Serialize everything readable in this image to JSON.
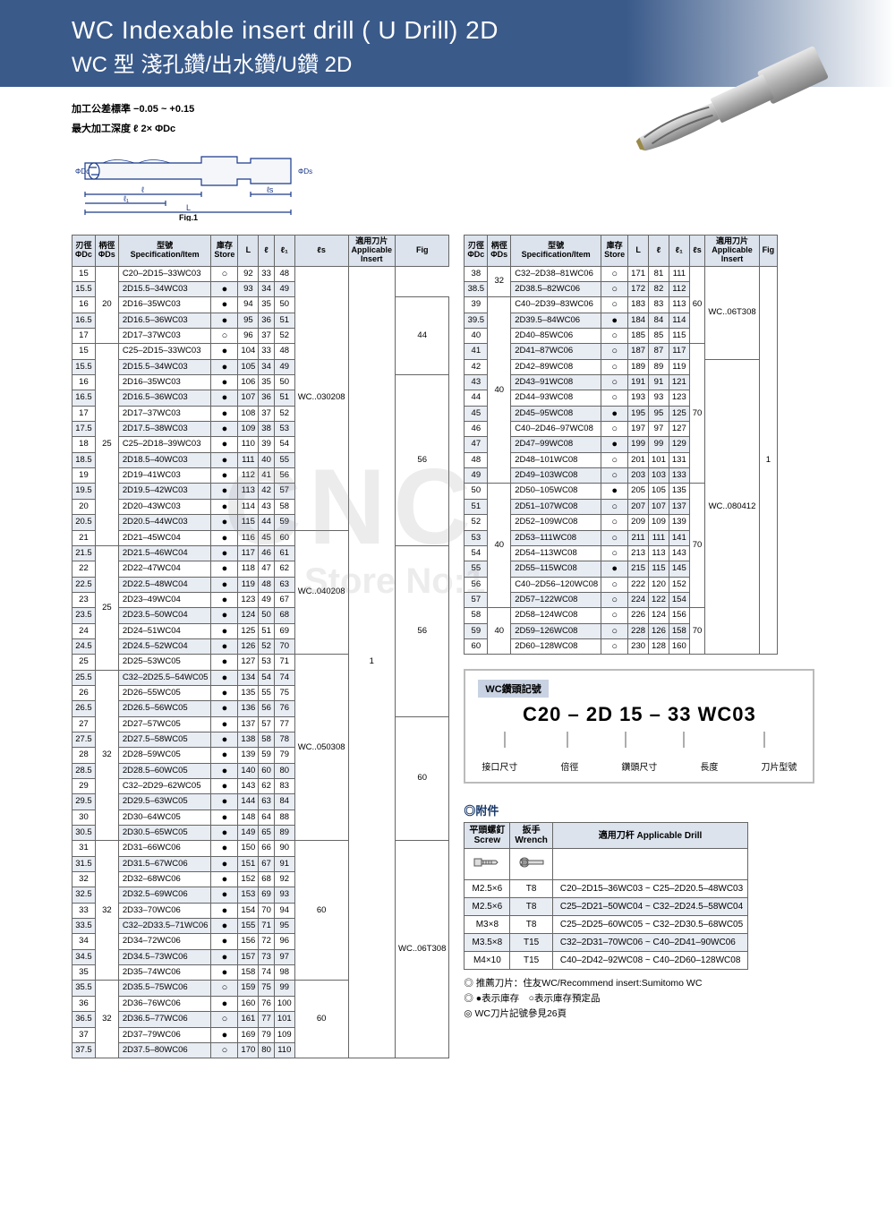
{
  "header": {
    "title_en": "WC Indexable insert drill   ( U Drill)   2D",
    "title_zh": "WC 型 淺孔鑽/出水鑽/U鑽  2D"
  },
  "tolerance": {
    "line1": "加工公差標準 −0.05 ~ +0.15",
    "line2": "最大加工深度 ℓ 2× ΦDc"
  },
  "diagram_label": "Fig.1",
  "table_headers": {
    "dc": "刃徑\nΦDc",
    "ds": "柄徑\nΦDs",
    "spec": "型號\nSpecification/Item",
    "store": "庫存\nStore",
    "L": "L",
    "l": "ℓ",
    "l1": "ℓ₁",
    "ls": "ℓs",
    "insert": "適用刀片\nApplicable\nInsert",
    "fig": "Fig"
  },
  "table1": [
    [
      "15",
      "20",
      "C20–2D15–33WC03",
      "",
      "o",
      "92",
      "33",
      "48",
      "",
      "WC..030208",
      "1"
    ],
    [
      "15.5",
      "",
      "2D15.5–34WC03",
      "a",
      "f",
      "93",
      "34",
      "49",
      "",
      "",
      ""
    ],
    [
      "16",
      "",
      "2D16–35WC03",
      "",
      "f",
      "94",
      "35",
      "50",
      "44",
      "",
      ""
    ],
    [
      "16.5",
      "",
      "2D16.5–36WC03",
      "a",
      "f",
      "95",
      "36",
      "51",
      "",
      "",
      ""
    ],
    [
      "17",
      "",
      "2D17–37WC03",
      "",
      "o",
      "96",
      "37",
      "52",
      "",
      "",
      ""
    ],
    [
      "15",
      "25",
      "C25–2D15–33WC03",
      "",
      "f",
      "104",
      "33",
      "48",
      "",
      "",
      ""
    ],
    [
      "15.5",
      "",
      "2D15.5–34WC03",
      "a",
      "f",
      "105",
      "34",
      "49",
      "",
      "",
      ""
    ],
    [
      "16",
      "",
      "2D16–35WC03",
      "",
      "f",
      "106",
      "35",
      "50",
      "56",
      "",
      ""
    ],
    [
      "16.5",
      "",
      "2D16.5–36WC03",
      "a",
      "f",
      "107",
      "36",
      "51",
      "",
      "",
      ""
    ],
    [
      "17",
      "",
      "2D17–37WC03",
      "",
      "f",
      "108",
      "37",
      "52",
      "",
      "",
      ""
    ],
    [
      "17.5",
      "",
      "2D17.5–38WC03",
      "a",
      "f",
      "109",
      "38",
      "53",
      "",
      "",
      ""
    ],
    [
      "18",
      "",
      "C25–2D18–39WC03",
      "",
      "f",
      "110",
      "39",
      "54",
      "",
      "",
      ""
    ],
    [
      "18.5",
      "",
      "2D18.5–40WC03",
      "a",
      "f",
      "111",
      "40",
      "55",
      "",
      "",
      ""
    ],
    [
      "19",
      "",
      "2D19–41WC03",
      "",
      "f",
      "112",
      "41",
      "56",
      "",
      "",
      ""
    ],
    [
      "19.5",
      "",
      "2D19.5–42WC03",
      "a",
      "f",
      "113",
      "42",
      "57",
      "",
      "",
      ""
    ],
    [
      "20",
      "",
      "2D20–43WC03",
      "",
      "f",
      "114",
      "43",
      "58",
      "",
      "",
      ""
    ],
    [
      "20.5",
      "",
      "2D20.5–44WC03",
      "a",
      "f",
      "115",
      "44",
      "59",
      "",
      "",
      ""
    ],
    [
      "21",
      "",
      "2D21–45WC04",
      "",
      "f",
      "116",
      "45",
      "60",
      "",
      "WC..040208",
      ""
    ],
    [
      "21.5",
      "25",
      "2D21.5–46WC04",
      "a",
      "f",
      "117",
      "46",
      "61",
      "56",
      "",
      ""
    ],
    [
      "22",
      "",
      "2D22–47WC04",
      "",
      "f",
      "118",
      "47",
      "62",
      "",
      "",
      ""
    ],
    [
      "22.5",
      "",
      "2D22.5–48WC04",
      "a",
      "f",
      "119",
      "48",
      "63",
      "",
      "",
      ""
    ],
    [
      "23",
      "",
      "2D23–49WC04",
      "",
      "f",
      "123",
      "49",
      "67",
      "",
      "",
      ""
    ],
    [
      "23.5",
      "",
      "2D23.5–50WC04",
      "a",
      "f",
      "124",
      "50",
      "68",
      "",
      "",
      ""
    ],
    [
      "24",
      "",
      "2D24–51WC04",
      "",
      "f",
      "125",
      "51",
      "69",
      "",
      "",
      ""
    ],
    [
      "24.5",
      "",
      "2D24.5–52WC04",
      "a",
      "f",
      "126",
      "52",
      "70",
      "",
      "",
      ""
    ],
    [
      "25",
      "",
      "2D25–53WC05",
      "",
      "f",
      "127",
      "53",
      "71",
      "",
      "WC..050308",
      ""
    ],
    [
      "25.5",
      "32",
      "C32–2D25.5–54WC05",
      "a",
      "f",
      "134",
      "54",
      "74",
      "",
      "",
      ""
    ],
    [
      "26",
      "",
      "2D26–55WC05",
      "",
      "f",
      "135",
      "55",
      "75",
      "",
      "",
      ""
    ],
    [
      "26.5",
      "",
      "2D26.5–56WC05",
      "a",
      "f",
      "136",
      "56",
      "76",
      "",
      "",
      ""
    ],
    [
      "27",
      "",
      "2D27–57WC05",
      "",
      "f",
      "137",
      "57",
      "77",
      "60",
      "",
      ""
    ],
    [
      "27.5",
      "",
      "2D27.5–58WC05",
      "a",
      "f",
      "138",
      "58",
      "78",
      "",
      "",
      ""
    ],
    [
      "28",
      "",
      "2D28–59WC05",
      "",
      "f",
      "139",
      "59",
      "79",
      "",
      "",
      ""
    ],
    [
      "28.5",
      "",
      "2D28.5–60WC05",
      "a",
      "f",
      "140",
      "60",
      "80",
      "",
      "",
      ""
    ],
    [
      "29",
      "",
      "C32–2D29–62WC05",
      "",
      "f",
      "143",
      "62",
      "83",
      "",
      "",
      ""
    ],
    [
      "29.5",
      "",
      "2D29.5–63WC05",
      "a",
      "f",
      "144",
      "63",
      "84",
      "",
      "",
      ""
    ],
    [
      "30",
      "",
      "2D30–64WC05",
      "",
      "f",
      "148",
      "64",
      "88",
      "",
      "",
      ""
    ],
    [
      "30.5",
      "",
      "2D30.5–65WC05",
      "a",
      "f",
      "149",
      "65",
      "89",
      "",
      "",
      ""
    ],
    [
      "31",
      "32",
      "2D31–66WC06",
      "",
      "f",
      "150",
      "66",
      "90",
      "60",
      "WC..06T308",
      ""
    ],
    [
      "31.5",
      "",
      "2D31.5–67WC06",
      "a",
      "f",
      "151",
      "67",
      "91",
      "",
      "",
      ""
    ],
    [
      "32",
      "",
      "2D32–68WC06",
      "",
      "f",
      "152",
      "68",
      "92",
      "",
      "",
      ""
    ],
    [
      "32.5",
      "",
      "2D32.5–69WC06",
      "a",
      "f",
      "153",
      "69",
      "93",
      "",
      "",
      ""
    ],
    [
      "33",
      "",
      "2D33–70WC06",
      "",
      "f",
      "154",
      "70",
      "94",
      "",
      "",
      ""
    ],
    [
      "33.5",
      "",
      "C32–2D33.5–71WC06",
      "a",
      "f",
      "155",
      "71",
      "95",
      "",
      "",
      ""
    ],
    [
      "34",
      "",
      "2D34–72WC06",
      "",
      "f",
      "156",
      "72",
      "96",
      "",
      "",
      ""
    ],
    [
      "34.5",
      "",
      "2D34.5–73WC06",
      "a",
      "f",
      "157",
      "73",
      "97",
      "",
      "",
      ""
    ],
    [
      "35",
      "",
      "2D35–74WC06",
      "",
      "f",
      "158",
      "74",
      "98",
      "",
      "",
      ""
    ],
    [
      "35.5",
      "32",
      "2D35.5–75WC06",
      "a",
      "o",
      "159",
      "75",
      "99",
      "60",
      "",
      ""
    ],
    [
      "36",
      "",
      "2D36–76WC06",
      "",
      "f",
      "160",
      "76",
      "100",
      "",
      "",
      ""
    ],
    [
      "36.5",
      "",
      "2D36.5–77WC06",
      "a",
      "o",
      "161",
      "77",
      "101",
      "",
      "",
      ""
    ],
    [
      "37",
      "",
      "2D37–79WC06",
      "",
      "f",
      "169",
      "79",
      "109",
      "",
      "",
      ""
    ],
    [
      "37.5",
      "",
      "2D37.5–80WC06",
      "a",
      "o",
      "170",
      "80",
      "110",
      "",
      "",
      ""
    ]
  ],
  "table2": [
    [
      "38",
      "32",
      "C32–2D38–81WC06",
      "",
      "o",
      "171",
      "81",
      "111",
      "60",
      "WC..06T308",
      "1"
    ],
    [
      "38.5",
      "",
      "2D38.5–82WC06",
      "a",
      "o",
      "172",
      "82",
      "112",
      "",
      "",
      ""
    ],
    [
      "39",
      "40",
      "C40–2D39–83WC06",
      "",
      "o",
      "183",
      "83",
      "113",
      "",
      "",
      ""
    ],
    [
      "39.5",
      "",
      "2D39.5–84WC06",
      "a",
      "f",
      "184",
      "84",
      "114",
      "",
      "",
      ""
    ],
    [
      "40",
      "",
      "2D40–85WC06",
      "",
      "o",
      "185",
      "85",
      "115",
      "",
      "",
      ""
    ],
    [
      "41",
      "",
      "2D41–87WC06",
      "a",
      "o",
      "187",
      "87",
      "117",
      "70",
      "",
      ""
    ],
    [
      "42",
      "",
      "2D42–89WC08",
      "",
      "o",
      "189",
      "89",
      "119",
      "",
      "WC..080412",
      ""
    ],
    [
      "43",
      "",
      "2D43–91WC08",
      "a",
      "o",
      "191",
      "91",
      "121",
      "",
      "",
      ""
    ],
    [
      "44",
      "",
      "2D44–93WC08",
      "",
      "o",
      "193",
      "93",
      "123",
      "",
      "",
      ""
    ],
    [
      "45",
      "",
      "2D45–95WC08",
      "a",
      "f",
      "195",
      "95",
      "125",
      "",
      "",
      ""
    ],
    [
      "46",
      "",
      "C40–2D46–97WC08",
      "",
      "o",
      "197",
      "97",
      "127",
      "",
      "",
      ""
    ],
    [
      "47",
      "",
      "2D47–99WC08",
      "a",
      "f",
      "199",
      "99",
      "129",
      "",
      "",
      ""
    ],
    [
      "48",
      "",
      "2D48–101WC08",
      "",
      "o",
      "201",
      "101",
      "131",
      "",
      "",
      ""
    ],
    [
      "49",
      "",
      "2D49–103WC08",
      "a",
      "o",
      "203",
      "103",
      "133",
      "",
      "",
      ""
    ],
    [
      "50",
      "40",
      "2D50–105WC08",
      "",
      "f",
      "205",
      "105",
      "135",
      "70",
      "",
      ""
    ],
    [
      "51",
      "",
      "2D51–107WC08",
      "a",
      "o",
      "207",
      "107",
      "137",
      "",
      "",
      ""
    ],
    [
      "52",
      "",
      "2D52–109WC08",
      "",
      "o",
      "209",
      "109",
      "139",
      "",
      "",
      ""
    ],
    [
      "53",
      "",
      "2D53–111WC08",
      "a",
      "o",
      "211",
      "111",
      "141",
      "",
      "",
      ""
    ],
    [
      "54",
      "",
      "2D54–113WC08",
      "",
      "o",
      "213",
      "113",
      "143",
      "",
      "",
      ""
    ],
    [
      "55",
      "",
      "2D55–115WC08",
      "a",
      "f",
      "215",
      "115",
      "145",
      "",
      "",
      ""
    ],
    [
      "56",
      "",
      "C40–2D56–120WC08",
      "",
      "o",
      "222",
      "120",
      "152",
      "",
      "",
      ""
    ],
    [
      "57",
      "",
      "2D57–122WC08",
      "a",
      "o",
      "224",
      "122",
      "154",
      "",
      "",
      ""
    ],
    [
      "58",
      "40",
      "2D58–124WC08",
      "",
      "o",
      "226",
      "124",
      "156",
      "70",
      "",
      ""
    ],
    [
      "59",
      "",
      "2D59–126WC08",
      "a",
      "o",
      "228",
      "126",
      "158",
      "",
      "",
      ""
    ],
    [
      "60",
      "",
      "2D60–128WC08",
      "",
      "o",
      "230",
      "128",
      "160",
      "",
      "",
      ""
    ]
  ],
  "explain": {
    "title": "WC鑽頭記號",
    "code": "C20 – 2D   15 – 33   WC03",
    "labels": [
      "接口尺寸",
      "倍徑",
      "鑽頭尺寸",
      "長度",
      "刀片型號"
    ]
  },
  "accessories": {
    "title": "◎附件",
    "headers": [
      "平頭螺釘\nScrew",
      "扳手\nWrench",
      "適用刀杆 Applicable Drill"
    ],
    "rows": [
      [
        "M2.5×6",
        "T8",
        "C20–2D15–36WC03 ~ C25–2D20.5–48WC03"
      ],
      [
        "M2.5×6",
        "T8",
        "C25–2D21–50WC04 ~ C32–2D24.5–58WC04"
      ],
      [
        "M3×8",
        "T8",
        "C25–2D25–60WC05 ~ C32–2D30.5–68WC05"
      ],
      [
        "M3.5×8",
        "T15",
        "C32–2D31–70WC06 ~ C40–2D41–90WC06"
      ],
      [
        "M4×10",
        "T15",
        "C40–2D42–92WC08 ~ C40–2D60–128WC08"
      ]
    ]
  },
  "notes": [
    "◎ 推薦刀片：住友WC/Recommend insert:Sumitomo WC",
    "◎ ●表示庫存　○表示庫存預定品",
    "◎ WC刀片記號參見26頁"
  ],
  "watermark": "CNC",
  "watermark2": "Store No:1"
}
